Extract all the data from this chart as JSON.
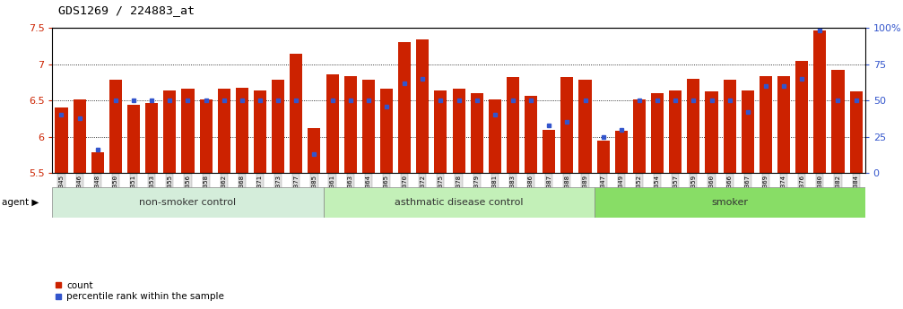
{
  "title": "GDS1269 / 224883_at",
  "samples": [
    "GSM38345",
    "GSM38346",
    "GSM38348",
    "GSM38350",
    "GSM38351",
    "GSM38353",
    "GSM38355",
    "GSM38356",
    "GSM38358",
    "GSM38362",
    "GSM38368",
    "GSM38371",
    "GSM38373",
    "GSM38377",
    "GSM38385",
    "GSM38361",
    "GSM38363",
    "GSM38364",
    "GSM38365",
    "GSM38370",
    "GSM38372",
    "GSM38375",
    "GSM38378",
    "GSM38379",
    "GSM38381",
    "GSM38383",
    "GSM38386",
    "GSM38387",
    "GSM38388",
    "GSM38389",
    "GSM38347",
    "GSM38349",
    "GSM38352",
    "GSM38354",
    "GSM38357",
    "GSM38359",
    "GSM38360",
    "GSM38366",
    "GSM38367",
    "GSM38369",
    "GSM38374",
    "GSM38376",
    "GSM38380",
    "GSM38382",
    "GSM38384"
  ],
  "count_values": [
    6.4,
    6.51,
    5.78,
    6.78,
    6.44,
    6.46,
    6.64,
    6.66,
    6.52,
    6.66,
    6.68,
    6.64,
    6.78,
    7.14,
    6.12,
    6.86,
    6.83,
    6.78,
    6.66,
    7.3,
    7.34,
    6.64,
    6.66,
    6.6,
    6.52,
    6.82,
    6.56,
    6.1,
    6.82,
    6.78,
    5.95,
    6.08,
    6.52,
    6.6,
    6.64,
    6.8,
    6.62,
    6.78,
    6.64,
    6.84,
    6.84,
    7.05,
    7.46,
    6.92,
    6.63
  ],
  "percentile_values": [
    40,
    38,
    16,
    50,
    50,
    50,
    50,
    50,
    50,
    50,
    50,
    50,
    50,
    50,
    13,
    50,
    50,
    50,
    46,
    62,
    65,
    50,
    50,
    50,
    40,
    50,
    50,
    33,
    35,
    50,
    25,
    30,
    50,
    50,
    50,
    50,
    50,
    50,
    42,
    60,
    60,
    65,
    98,
    50,
    50
  ],
  "groups": [
    {
      "label": "non-smoker control",
      "start": 0,
      "end": 15,
      "color": "#d4edda"
    },
    {
      "label": "asthmatic disease control",
      "start": 15,
      "end": 30,
      "color": "#c3f0b8"
    },
    {
      "label": "smoker",
      "start": 30,
      "end": 45,
      "color": "#88dd66"
    }
  ],
  "ymin": 5.5,
  "ymax": 7.5,
  "bar_color": "#cc2200",
  "blue_color": "#3355cc",
  "bg_color": "#ffffff"
}
